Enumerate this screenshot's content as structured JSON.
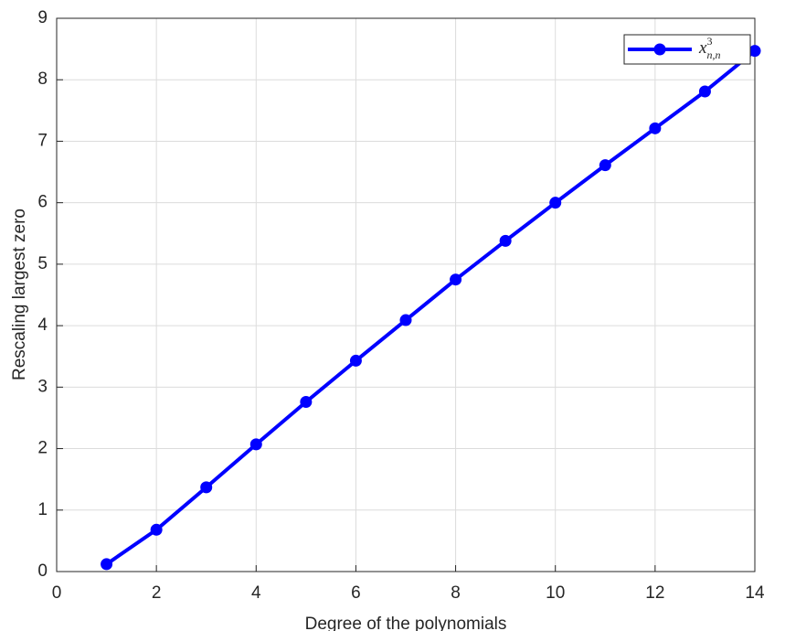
{
  "chart_data": {
    "type": "line",
    "xlabel": "Degree of the polynomials",
    "ylabel": "Rescaling largest zero",
    "x": [
      1,
      2,
      3,
      4,
      5,
      6,
      7,
      8,
      9,
      10,
      11,
      12,
      13,
      14
    ],
    "series": [
      {
        "name": "x",
        "name_sub": "n,n",
        "name_sup": "3",
        "color": "#0000ff",
        "values": [
          0.12,
          0.68,
          1.37,
          2.07,
          2.76,
          3.43,
          4.09,
          4.75,
          5.38,
          6.0,
          6.61,
          7.21,
          7.81,
          8.47
        ]
      }
    ],
    "xlim": [
      0,
      14
    ],
    "xticks": [
      0,
      2,
      4,
      6,
      8,
      10,
      12,
      14
    ],
    "ylim": [
      0,
      9
    ],
    "yticks": [
      0,
      1,
      2,
      3,
      4,
      5,
      6,
      7,
      8,
      9
    ],
    "grid": true,
    "legend": "northeast"
  }
}
